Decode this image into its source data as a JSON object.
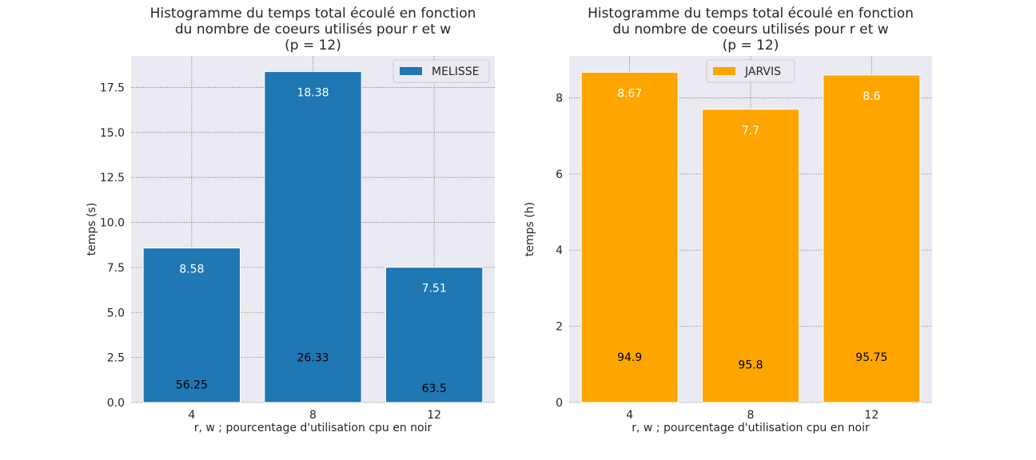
{
  "chart_data": [
    {
      "type": "bar",
      "title_lines": [
        "Histogramme du temps total écoulé en fonction",
        "du nombre de coeurs utilisés pour r et w",
        "(p = 12)"
      ],
      "xlabel": "r, w ; pourcentage d'utilisation cpu en noir",
      "ylabel": "temps (s)",
      "categories": [
        "4",
        "8",
        "12"
      ],
      "series": [
        {
          "name": "MELISSE",
          "values": [
            8.58,
            18.38,
            7.51
          ],
          "color": "#1f77b4"
        }
      ],
      "value_labels": [
        "8.58",
        "18.38",
        "7.51"
      ],
      "cpu_labels": [
        "56.25",
        "26.33",
        "63.5"
      ],
      "cpu_label_y": [
        1.0,
        2.5,
        0.8
      ],
      "ylim": [
        0,
        19.25
      ],
      "yticks": [
        0.0,
        2.5,
        5.0,
        7.5,
        10.0,
        12.5,
        15.0,
        17.5
      ],
      "ytick_labels": [
        "0.0",
        "2.5",
        "5.0",
        "7.5",
        "10.0",
        "12.5",
        "15.0",
        "17.5"
      ],
      "legend_position": "top-right",
      "grid": true
    },
    {
      "type": "bar",
      "title_lines": [
        "Histogramme du temps total écoulé en fonction",
        "du nombre de coeurs utilisés pour r et w",
        "(p = 12)"
      ],
      "xlabel": "r, w ; pourcentage d'utilisation cpu en noir",
      "ylabel": "temps (h)",
      "categories": [
        "4",
        "8",
        "12"
      ],
      "series": [
        {
          "name": "JARVIS",
          "values": [
            8.67,
            7.7,
            8.6
          ],
          "color": "#ffa500"
        }
      ],
      "value_labels": [
        "8.67",
        "7.7",
        "8.6"
      ],
      "cpu_labels": [
        "94.9",
        "95.8",
        "95.75"
      ],
      "cpu_label_y": [
        1.2,
        1.0,
        1.2
      ],
      "ylim": [
        0,
        9.1
      ],
      "yticks": [
        0,
        2,
        4,
        6,
        8
      ],
      "ytick_labels": [
        "0",
        "2",
        "4",
        "6",
        "8"
      ],
      "legend_position": "top-center",
      "grid": true
    }
  ],
  "style": {
    "axes_bg": "#eaeaf2",
    "grid_color": "#808080"
  }
}
